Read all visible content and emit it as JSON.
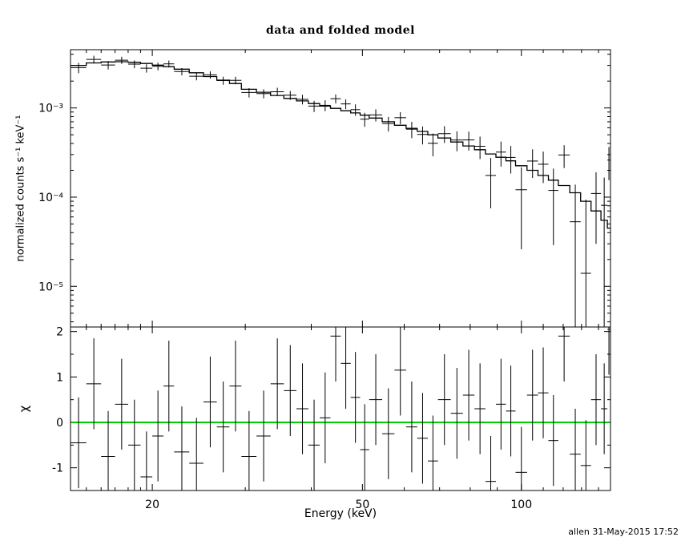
{
  "annotations": {
    "credit": "allen 31-May-2015 17:52"
  },
  "chart_data": {
    "type": "scatter",
    "title": "data and folded model",
    "xlabel": "Energy (keV)",
    "ylabel_main": "normalized counts s⁻¹ keV⁻¹",
    "ylabel_resid": "χ",
    "x_scale": "log",
    "y_scale_main": "log",
    "y_scale_resid": "linear",
    "grid": false,
    "legend": false,
    "xlim": [
      14,
      147.5
    ],
    "ylim_main": [
      3.5e-06,
      0.0045
    ],
    "ylim_resid": [
      -1.5,
      2.1
    ],
    "x_major_ticks": [
      20,
      50,
      100
    ],
    "x_major_labels": [
      "20",
      "50",
      "100"
    ],
    "x_minor_ticks": [
      15,
      16,
      17,
      18,
      19,
      30,
      40,
      60,
      70,
      80,
      90,
      110,
      120,
      130,
      140
    ],
    "y_major_ticks_main": [
      1e-05,
      0.0001,
      0.001
    ],
    "y_major_labels_main": [
      "10⁻⁵",
      "10⁻⁴",
      "10⁻³"
    ],
    "y_major_ticks_resid": [
      -1,
      0,
      1,
      2
    ],
    "y_major_labels_resid": [
      "-1",
      "0",
      "1",
      "2"
    ],
    "data_color": "#000000",
    "model_color": "#000000",
    "zero_line_color": "#00cc00",
    "chi_err": 1.0,
    "points": [
      {
        "e": 14.5,
        "de": 0.5,
        "rate": 0.00283,
        "err": 0.00038,
        "model": 0.003,
        "chi": -0.45
      },
      {
        "e": 15.5,
        "de": 0.5,
        "rate": 0.0035,
        "err": 0.00035,
        "model": 0.0032,
        "chi": 0.85
      },
      {
        "e": 16.5,
        "de": 0.5,
        "rate": 0.00303,
        "err": 0.00033,
        "model": 0.00328,
        "chi": -0.75
      },
      {
        "e": 17.5,
        "de": 0.5,
        "rate": 0.00343,
        "err": 0.00032,
        "model": 0.0033,
        "chi": 0.4
      },
      {
        "e": 18.5,
        "de": 0.5,
        "rate": 0.0031,
        "err": 0.00031,
        "model": 0.00325,
        "chi": -0.5
      },
      {
        "e": 19.5,
        "de": 0.5,
        "rate": 0.00279,
        "err": 0.0003,
        "model": 0.00315,
        "chi": -1.2
      },
      {
        "e": 20.5,
        "de": 0.5,
        "rate": 0.00293,
        "err": 0.00029,
        "model": 0.00302,
        "chi": -0.3
      },
      {
        "e": 21.5,
        "de": 0.5,
        "rate": 0.00312,
        "err": 0.00028,
        "model": 0.0029,
        "chi": 0.8
      },
      {
        "e": 22.75,
        "de": 0.75,
        "rate": 0.00256,
        "err": 0.00024,
        "model": 0.00272,
        "chi": -0.65
      },
      {
        "e": 24.25,
        "de": 0.75,
        "rate": 0.00227,
        "err": 0.00023,
        "model": 0.00248,
        "chi": -0.9
      },
      {
        "e": 25.75,
        "de": 0.75,
        "rate": 0.00235,
        "err": 0.00022,
        "model": 0.00225,
        "chi": 0.45
      },
      {
        "e": 27.25,
        "de": 0.75,
        "rate": 0.00203,
        "err": 0.00021,
        "model": 0.00205,
        "chi": -0.1
      },
      {
        "e": 28.75,
        "de": 0.75,
        "rate": 0.00204,
        "err": 0.0002,
        "model": 0.00188,
        "chi": 0.8
      },
      {
        "e": 30.5,
        "de": 1.0,
        "rate": 0.00149,
        "err": 0.00018,
        "model": 0.00162,
        "chi": -0.75
      },
      {
        "e": 32.5,
        "de": 1.0,
        "rate": 0.00145,
        "err": 0.00017,
        "model": 0.0015,
        "chi": -0.3
      },
      {
        "e": 34.5,
        "de": 1.0,
        "rate": 0.00152,
        "err": 0.000165,
        "model": 0.00138,
        "chi": 0.85
      },
      {
        "e": 36.5,
        "de": 1.0,
        "rate": 0.00139,
        "err": 0.00016,
        "model": 0.00128,
        "chi": 0.7
      },
      {
        "e": 38.5,
        "de": 1.0,
        "rate": 0.00125,
        "err": 0.000155,
        "model": 0.0012,
        "chi": 0.3
      },
      {
        "e": 40.5,
        "de": 1.0,
        "rate": 0.00105,
        "err": 0.00015,
        "model": 0.00112,
        "chi": -0.5
      },
      {
        "e": 42.5,
        "de": 1.0,
        "rate": 0.00107,
        "err": 0.00015,
        "model": 0.00105,
        "chi": 0.1
      },
      {
        "e": 44.5,
        "de": 1.0,
        "rate": 0.00127,
        "err": 0.000145,
        "model": 0.00099,
        "chi": 1.9
      },
      {
        "e": 46.5,
        "de": 1.0,
        "rate": 0.00111,
        "err": 0.00014,
        "model": 0.00093,
        "chi": 1.3
      },
      {
        "e": 48.5,
        "de": 1.0,
        "rate": 0.000957,
        "err": 0.00014,
        "model": 0.00088,
        "chi": 0.55
      },
      {
        "e": 50.5,
        "de": 1.0,
        "rate": 0.000749,
        "err": 0.000135,
        "model": 0.00083,
        "chi": -0.6
      },
      {
        "e": 53.0,
        "de": 1.5,
        "rate": 0.000835,
        "err": 0.00013,
        "model": 0.00077,
        "chi": 0.5
      },
      {
        "e": 56.0,
        "de": 1.5,
        "rate": 0.000669,
        "err": 0.000125,
        "model": 0.0007,
        "chi": -0.25
      },
      {
        "e": 59.0,
        "de": 1.5,
        "rate": 0.000778,
        "err": 0.00012,
        "model": 0.00064,
        "chi": 1.15
      },
      {
        "e": 62.0,
        "de": 1.5,
        "rate": 0.000578,
        "err": 0.00012,
        "model": 0.00059,
        "chi": -0.1
      },
      {
        "e": 65.0,
        "de": 1.5,
        "rate": 0.000505,
        "err": 0.000115,
        "model": 0.000545,
        "chi": -0.35
      },
      {
        "e": 68.0,
        "de": 1.5,
        "rate": 0.000402,
        "err": 0.000115,
        "model": 0.0005,
        "chi": -0.85
      },
      {
        "e": 71.5,
        "de": 2.0,
        "rate": 0.000515,
        "err": 0.00011,
        "model": 0.00046,
        "chi": 0.5
      },
      {
        "e": 75.5,
        "de": 2.0,
        "rate": 0.000437,
        "err": 0.00011,
        "model": 0.000415,
        "chi": 0.2
      },
      {
        "e": 79.5,
        "de": 2.0,
        "rate": 0.000438,
        "err": 0.000105,
        "model": 0.000375,
        "chi": 0.6
      },
      {
        "e": 83.5,
        "de": 2.0,
        "rate": 0.000372,
        "err": 0.000105,
        "model": 0.00034,
        "chi": 0.3
      },
      {
        "e": 87.5,
        "de": 2.0,
        "rate": 0.000175,
        "err": 0.0001,
        "model": 0.000305,
        "chi": -1.3
      },
      {
        "e": 91.5,
        "de": 2.0,
        "rate": 0.00032,
        "err": 0.0001,
        "model": 0.00028,
        "chi": 0.4
      },
      {
        "e": 95.5,
        "de": 2.0,
        "rate": 0.000279,
        "err": 9.5e-05,
        "model": 0.000255,
        "chi": 0.25
      },
      {
        "e": 100.0,
        "de": 2.5,
        "rate": 0.000121,
        "err": 9.5e-05,
        "model": 0.000225,
        "chi": -1.1
      },
      {
        "e": 105.0,
        "de": 2.5,
        "rate": 0.000254,
        "err": 9e-05,
        "model": 0.0002,
        "chi": 0.6
      },
      {
        "e": 110.0,
        "de": 2.5,
        "rate": 0.000234,
        "err": 9e-05,
        "model": 0.000175,
        "chi": 0.65
      },
      {
        "e": 115.0,
        "de": 2.5,
        "rate": 0.000119,
        "err": 9e-05,
        "model": 0.000155,
        "chi": -0.4
      },
      {
        "e": 120.5,
        "de": 3.0,
        "rate": 0.000297,
        "err": 8.5e-05,
        "model": 0.000135,
        "chi": 1.9
      },
      {
        "e": 126.5,
        "de": 3.0,
        "rate": 5.3e-05,
        "err": 8.5e-05,
        "model": 0.000112,
        "chi": -0.7
      },
      {
        "e": 132.5,
        "de": 3.0,
        "rate": 1.4e-05,
        "err": 8e-05,
        "model": 9e-05,
        "chi": -0.95
      },
      {
        "e": 138.5,
        "de": 3.0,
        "rate": 0.00011,
        "err": 8e-05,
        "model": 7e-05,
        "chi": 0.5
      },
      {
        "e": 143.5,
        "de": 2.0,
        "rate": 8.1e-05,
        "err": 8.5e-05,
        "model": 5.5e-05,
        "chi": 0.3
      },
      {
        "e": 146.5,
        "de": 1.0,
        "rate": 0.00026,
        "err": 0.000105,
        "model": 4.5e-05,
        "chi": 2.05
      }
    ]
  }
}
